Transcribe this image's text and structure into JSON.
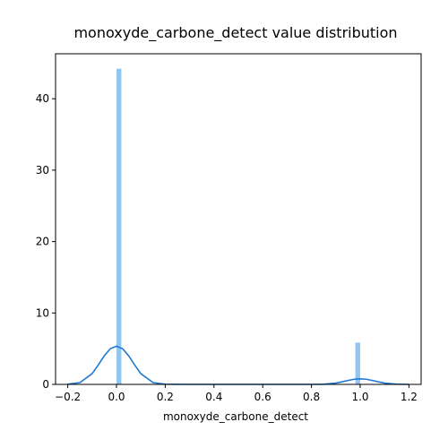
{
  "chart_data": {
    "type": "bar",
    "title": "monoxyde_carbone_detect value distribution",
    "xlabel": "monoxyde_carbone_detect",
    "ylabel": "",
    "xlim": [
      -0.25,
      1.25
    ],
    "ylim": [
      0,
      46.3
    ],
    "xticks": [
      -0.2,
      0.0,
      0.2,
      0.4,
      0.6,
      0.8,
      1.0,
      1.2
    ],
    "xtick_labels": [
      "−0.2",
      "0.0",
      "0.2",
      "0.4",
      "0.6",
      "0.8",
      "1.0",
      "1.2"
    ],
    "yticks": [
      0,
      10,
      20,
      30,
      40
    ],
    "ytick_labels": [
      "0",
      "10",
      "20",
      "30",
      "40"
    ],
    "grid": false,
    "histogram": {
      "bin_width": 0.02,
      "bars": [
        {
          "x0": 0.0,
          "x1": 0.02,
          "density": 44.2
        },
        {
          "x0": 0.98,
          "x1": 1.0,
          "density": 5.85
        }
      ],
      "color": "#92c5f4"
    },
    "kde": {
      "color": "#1f77d4",
      "x": [
        -0.2,
        -0.15,
        -0.1,
        -0.075,
        -0.05,
        -0.025,
        0.0,
        0.025,
        0.05,
        0.075,
        0.1,
        0.15,
        0.2,
        0.3,
        0.5,
        0.7,
        0.8,
        0.85,
        0.9,
        0.925,
        0.95,
        0.975,
        1.0,
        1.025,
        1.05,
        1.075,
        1.1,
        1.15,
        1.2
      ],
      "y": [
        0.02,
        0.25,
        1.5,
        2.7,
        4.0,
        5.0,
        5.35,
        5.0,
        4.0,
        2.7,
        1.5,
        0.25,
        0.02,
        0.0,
        0.0,
        0.0,
        0.0,
        0.02,
        0.18,
        0.35,
        0.55,
        0.72,
        0.77,
        0.72,
        0.55,
        0.35,
        0.18,
        0.02,
        0.0
      ]
    }
  }
}
